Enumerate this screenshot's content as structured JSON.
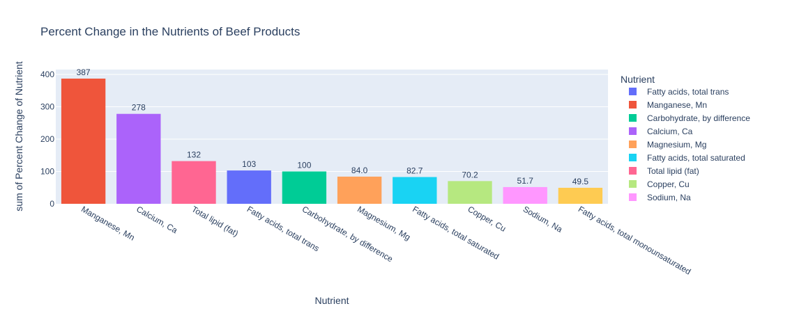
{
  "chart_data": {
    "type": "bar",
    "title": "Percent Change in the Nutrients of Beef Products",
    "xlabel": "Nutrient",
    "ylabel": "sum of Percent Change of Nutrient",
    "ylim": [
      0,
      415
    ],
    "yticks": [
      0,
      100,
      200,
      300,
      400
    ],
    "grid": true,
    "categories": [
      "Manganese, Mn",
      "Calcium, Ca",
      "Total lipid (fat)",
      "Fatty acids, total trans",
      "Carbohydrate, by difference",
      "Magnesium, Mg",
      "Fatty acids, total saturated",
      "Copper, Cu",
      "Sodium, Na",
      "Fatty acids, total monounsaturated"
    ],
    "values": [
      387,
      278,
      132,
      103,
      100,
      84.0,
      82.7,
      70.2,
      51.7,
      49.5
    ],
    "value_labels": [
      "387",
      "278",
      "132",
      "103",
      "100",
      "84.0",
      "82.7",
      "70.2",
      "51.7",
      "49.5"
    ],
    "bar_colors": [
      "#EF553B",
      "#AB63FA",
      "#FF6692",
      "#636EFA",
      "#00CC96",
      "#FFA15A",
      "#19D3F3",
      "#B6E880",
      "#FF97FF",
      "#FECB52"
    ],
    "legend": {
      "title": "Nutrient",
      "placement": "right",
      "entries": [
        {
          "name": "Fatty acids, total trans",
          "color": "#636EFA"
        },
        {
          "name": "Manganese, Mn",
          "color": "#EF553B"
        },
        {
          "name": "Carbohydrate, by difference",
          "color": "#00CC96"
        },
        {
          "name": "Calcium, Ca",
          "color": "#AB63FA"
        },
        {
          "name": "Magnesium, Mg",
          "color": "#FFA15A"
        },
        {
          "name": "Fatty acids, total saturated",
          "color": "#19D3F3"
        },
        {
          "name": "Total lipid (fat)",
          "color": "#FF6692"
        },
        {
          "name": "Copper, Cu",
          "color": "#B6E880"
        },
        {
          "name": "Sodium, Na",
          "color": "#FF97FF"
        }
      ]
    },
    "plot_background": "#E5ECF6",
    "text_color": "#2a3f5f"
  }
}
